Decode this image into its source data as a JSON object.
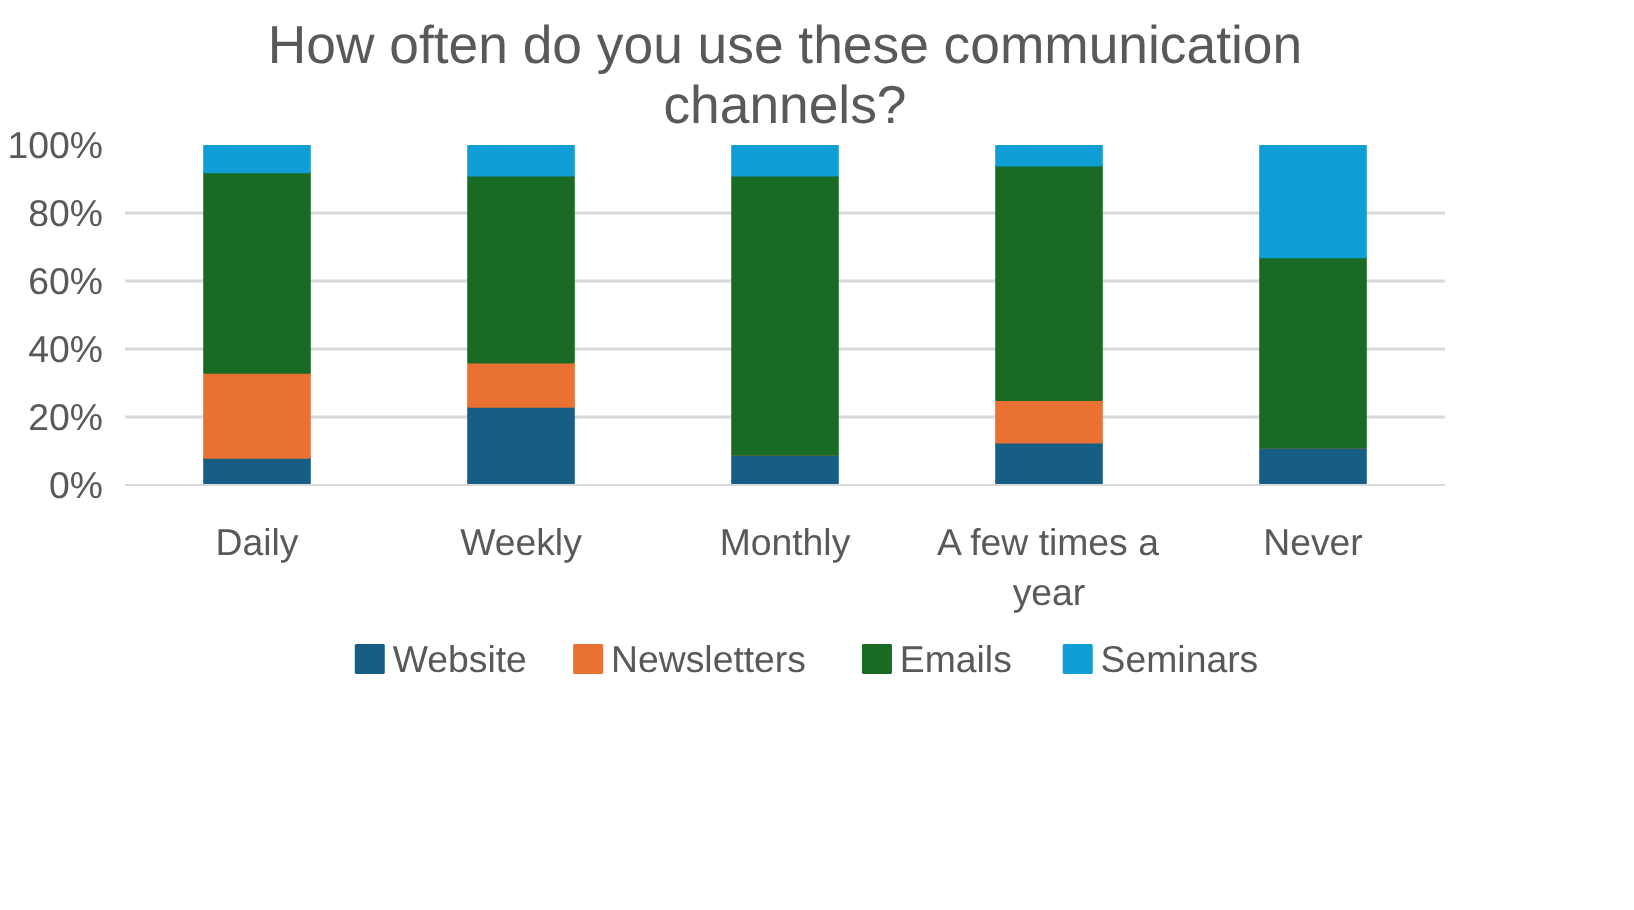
{
  "chart_data": {
    "type": "bar",
    "stacked": true,
    "title": "How often do you use these communication channels?",
    "categories": [
      "Daily",
      "Weekly",
      "Monthly",
      "A few times a year",
      "Never"
    ],
    "series": [
      {
        "name": "Website",
        "color": "#165e83",
        "values": [
          8,
          23,
          9,
          12.5,
          11
        ]
      },
      {
        "name": "Newsletters",
        "color": "#e97132",
        "values": [
          25,
          13,
          0,
          12.5,
          0
        ]
      },
      {
        "name": "Emails",
        "color": "#196b24",
        "values": [
          59,
          55,
          82,
          69,
          56
        ]
      },
      {
        "name": "Seminars",
        "color": "#0f9ed5",
        "values": [
          8,
          9,
          9,
          6,
          33
        ]
      }
    ],
    "ylim": [
      0,
      100
    ],
    "yticks": [
      {
        "value": 0,
        "label": "0%"
      },
      {
        "value": 20,
        "label": "20%"
      },
      {
        "value": 40,
        "label": "40%"
      },
      {
        "value": 60,
        "label": "60%"
      },
      {
        "value": 80,
        "label": "80%"
      },
      {
        "value": 100,
        "label": "100%"
      }
    ],
    "grid": "y",
    "legend": "bottom"
  }
}
